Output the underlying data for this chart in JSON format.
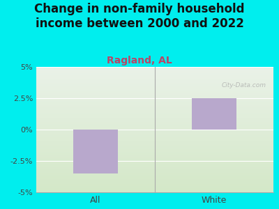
{
  "title": "Change in non-family household\nincome between 2000 and 2022",
  "subtitle": "Ragland, AL",
  "categories": [
    "All",
    "White"
  ],
  "values": [
    -3.5,
    2.5
  ],
  "bar_color": "#b8a8cc",
  "background_color": "#00EEEE",
  "plot_bg_color_top": "#eaf2e8",
  "plot_bg_color_bottom": "#d4e8c8",
  "ylim": [
    -5,
    5
  ],
  "yticks": [
    -5,
    -2.5,
    0,
    2.5,
    5
  ],
  "ytick_labels": [
    "-5%",
    "-2.5%",
    "0%",
    "2.5%",
    "5%"
  ],
  "title_fontsize": 12,
  "subtitle_fontsize": 10,
  "subtitle_color": "#bb4466",
  "title_color": "#111111",
  "tick_color": "#444444",
  "watermark": "City-Data.com",
  "bar_width": 0.38
}
